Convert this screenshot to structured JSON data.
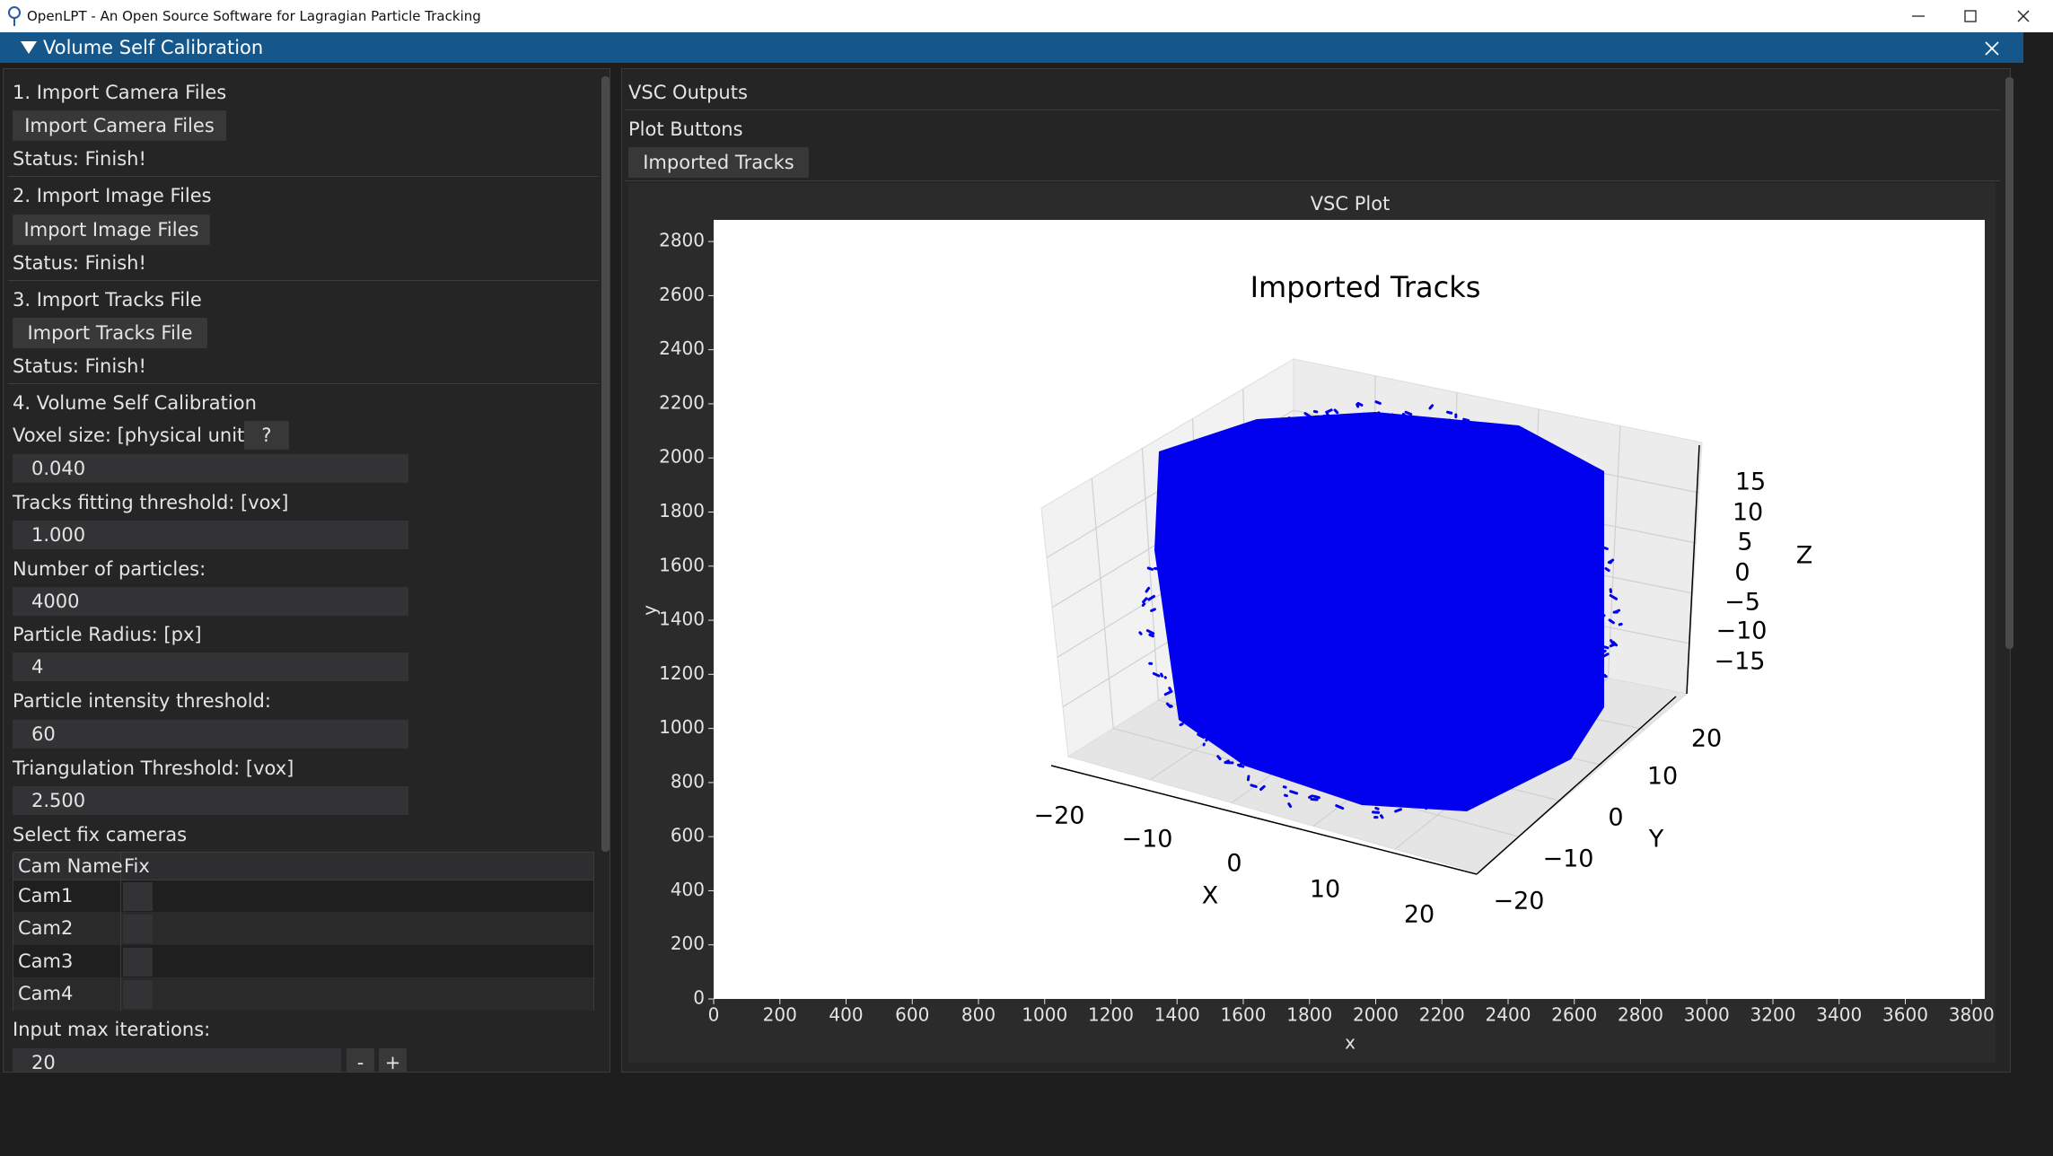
{
  "window": {
    "title": "OpenLPT - An Open Source Software for Lagragian Particle Tracking"
  },
  "header": {
    "title": "Volume Self Calibration"
  },
  "left_panel": {
    "import_camera": {
      "heading": "1. Import Camera Files",
      "button": "Import Camera Files",
      "status": "Status: Finish!"
    },
    "import_image": {
      "heading": "2. Import Image Files",
      "button": "Import Image Files",
      "status": "Status: Finish!"
    },
    "import_tracks": {
      "heading": "3. Import Tracks File",
      "button": "Import Tracks File",
      "status": "Status: Finish!"
    },
    "calibration": {
      "heading": "4. Volume Self Calibration",
      "help_button": "?",
      "fields": [
        {
          "label": "Voxel size: [physical unit]",
          "value": "0.040"
        },
        {
          "label": "Tracks fitting threshold: [vox]",
          "value": "1.000"
        },
        {
          "label": "Number of particles:",
          "value": "4000"
        },
        {
          "label": "Particle Radius: [px]",
          "value": "4"
        },
        {
          "label": "Particle intensity threshold:",
          "value": "60"
        },
        {
          "label": "Triangulation Threshold: [vox]",
          "value": "2.500"
        }
      ],
      "fix_cameras": {
        "label": "Select fix cameras",
        "columns": [
          "Cam Name",
          "Fix"
        ],
        "rows": [
          "Cam1",
          "Cam2",
          "Cam3",
          "Cam4"
        ]
      },
      "iterations": {
        "label": "Input max iterations:",
        "value": "20",
        "decrement": "-",
        "increment": "+"
      }
    }
  },
  "right_panel": {
    "outputs_heading": "VSC Outputs",
    "plot_buttons_heading": "Plot Buttons",
    "plot_button": "Imported Tracks",
    "plot": {
      "title": "VSC Plot",
      "xlabel": "x",
      "ylabel": "y",
      "xlim": [
        0,
        3840
      ],
      "ylim": [
        0,
        2880
      ],
      "xticks": [
        0,
        200,
        400,
        600,
        800,
        1000,
        1200,
        1400,
        1600,
        1800,
        2000,
        2200,
        2400,
        2600,
        2800,
        3000,
        3200,
        3400,
        3600,
        3800
      ],
      "yticks": [
        0,
        200,
        400,
        600,
        800,
        1000,
        1200,
        1400,
        1600,
        1800,
        2000,
        2200,
        2400,
        2600,
        2800
      ],
      "image": {
        "title": "Imported Tracks",
        "x_axis": {
          "label": "X",
          "ticks": [
            "−20",
            "−10",
            "0",
            "10",
            "20"
          ]
        },
        "y_axis": {
          "label": "Y",
          "ticks": [
            "20",
            "10",
            "0",
            "−10",
            "−20"
          ]
        },
        "z_axis": {
          "label": "Z",
          "ticks": [
            "15",
            "10",
            "5",
            "0",
            "−5",
            "−10",
            "−15"
          ]
        }
      }
    }
  }
}
